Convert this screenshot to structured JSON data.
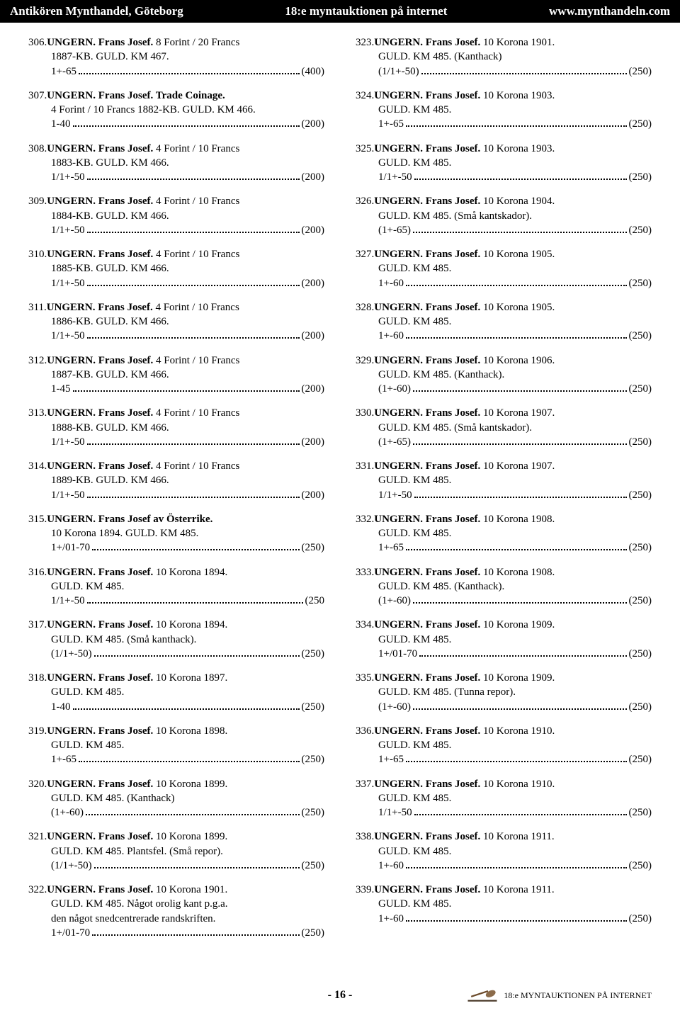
{
  "header": {
    "left": "Antikören Mynthandel, Göteborg",
    "center": "18:e myntauktionen på internet",
    "right": "www.mynthandeln.com"
  },
  "footer": {
    "page": "- 16 -",
    "right": "18:e MYNTAUKTIONEN PÅ INTERNET"
  },
  "lots_left": [
    {
      "num": "306.",
      "title": "UNGERN. Frans Josef.",
      "rest": " 8 Forint / 20 Francs",
      "body": [
        "1887-KB. GULD. KM 467."
      ],
      "lead": "1+-65",
      "price": "(400)"
    },
    {
      "num": "307.",
      "title": "UNGERN. Frans Josef. Trade Coinage.",
      "rest": "",
      "body": [
        "4 Forint / 10 Francs 1882-KB. GULD. KM 466."
      ],
      "lead": "1-40",
      "price": "(200)"
    },
    {
      "num": "308.",
      "title": "UNGERN. Frans Josef.",
      "rest": " 4 Forint / 10 Francs",
      "body": [
        "1883-KB. GULD. KM 466."
      ],
      "lead": "1/1+-50",
      "price": "(200)"
    },
    {
      "num": "309.",
      "title": "UNGERN. Frans Josef.",
      "rest": " 4 Forint / 10 Francs",
      "body": [
        "1884-KB. GULD. KM 466."
      ],
      "lead": "1/1+-50",
      "price": "(200)"
    },
    {
      "num": "310.",
      "title": "UNGERN. Frans Josef.",
      "rest": " 4 Forint / 10 Francs",
      "body": [
        "1885-KB. GULD. KM 466."
      ],
      "lead": "1/1+-50",
      "price": "(200)"
    },
    {
      "num": "311.",
      "title": "UNGERN. Frans Josef.",
      "rest": " 4 Forint / 10 Francs",
      "body": [
        "1886-KB. GULD. KM 466."
      ],
      "lead": "1/1+-50",
      "price": "(200)"
    },
    {
      "num": "312.",
      "title": "UNGERN. Frans Josef.",
      "rest": " 4 Forint / 10 Francs",
      "body": [
        "1887-KB. GULD. KM 466."
      ],
      "lead": "1-45",
      "price": "(200)"
    },
    {
      "num": "313.",
      "title": "UNGERN. Frans Josef.",
      "rest": " 4 Forint / 10 Francs",
      "body": [
        "1888-KB. GULD. KM 466."
      ],
      "lead": "1/1+-50",
      "price": "(200)"
    },
    {
      "num": "314.",
      "title": "UNGERN. Frans Josef.",
      "rest": " 4 Forint / 10 Francs",
      "body": [
        "1889-KB. GULD. KM 466."
      ],
      "lead": "1/1+-50",
      "price": "(200)"
    },
    {
      "num": "315.",
      "title": "UNGERN. Frans Josef av Österrike.",
      "rest": "",
      "body": [
        "10 Korona 1894. GULD. KM 485."
      ],
      "lead": "1+/01-70",
      "price": "(250)"
    },
    {
      "num": "316.",
      "title": "UNGERN. Frans Josef.",
      "rest": " 10 Korona 1894.",
      "body": [
        "GULD. KM 485."
      ],
      "lead": "1/1+-50",
      "price": "(250"
    },
    {
      "num": "317.",
      "title": "UNGERN. Frans Josef.",
      "rest": " 10 Korona 1894.",
      "body": [
        "GULD. KM 485. (Små kanthack)."
      ],
      "lead": "(1/1+-50)",
      "price": "(250)"
    },
    {
      "num": "318.",
      "title": "UNGERN. Frans Josef.",
      "rest": " 10 Korona 1897.",
      "body": [
        "GULD. KM 485."
      ],
      "lead": "1-40",
      "price": "(250)"
    },
    {
      "num": "319.",
      "title": "UNGERN. Frans Josef.",
      "rest": " 10 Korona 1898.",
      "body": [
        "GULD. KM 485."
      ],
      "lead": "1+-65",
      "price": "(250)"
    },
    {
      "num": "320.",
      "title": "UNGERN. Frans Josef.",
      "rest": " 10 Korona 1899.",
      "body": [
        "GULD. KM 485. (Kanthack)"
      ],
      "lead": "(1+-60)",
      "price": "(250)"
    },
    {
      "num": "321.",
      "title": "UNGERN. Frans Josef.",
      "rest": " 10 Korona 1899.",
      "body": [
        "GULD. KM 485. Plantsfel. (Små repor)."
      ],
      "lead": "(1/1+-50)",
      "price": "(250)"
    },
    {
      "num": "322.",
      "title": "UNGERN. Frans Josef.",
      "rest": " 10 Korona 1901.",
      "body": [
        "GULD. KM 485. Något orolig kant p.g.a.",
        "den något snedcentrerade randskriften."
      ],
      "lead": "1+/01-70",
      "price": "(250)"
    }
  ],
  "lots_right": [
    {
      "num": "323.",
      "title": "UNGERN. Frans Josef.",
      "rest": " 10 Korona 1901.",
      "body": [
        "GULD. KM 485. (Kanthack)"
      ],
      "lead": "(1/1+-50)",
      "price": "(250)"
    },
    {
      "num": "324.",
      "title": "UNGERN. Frans Josef.",
      "rest": " 10 Korona 1903.",
      "body": [
        "GULD. KM 485."
      ],
      "lead": "1+-65",
      "price": "(250)"
    },
    {
      "num": "325.",
      "title": "UNGERN. Frans Josef.",
      "rest": " 10 Korona 1903.",
      "body": [
        "GULD. KM 485."
      ],
      "lead": "1/1+-50",
      "price": "(250)"
    },
    {
      "num": "326.",
      "title": "UNGERN. Frans Josef.",
      "rest": " 10 Korona 1904.",
      "body": [
        "GULD. KM 485. (Små kantskador)."
      ],
      "lead": "(1+-65)",
      "price": "(250)"
    },
    {
      "num": "327.",
      "title": "UNGERN. Frans Josef.",
      "rest": " 10 Korona 1905.",
      "body": [
        "GULD. KM 485."
      ],
      "lead": "1+-60",
      "price": "(250)"
    },
    {
      "num": "328.",
      "title": "UNGERN. Frans Josef.",
      "rest": " 10 Korona 1905.",
      "body": [
        "GULD. KM 485."
      ],
      "lead": "1+-60",
      "price": "(250)"
    },
    {
      "num": "329.",
      "title": "UNGERN. Frans Josef.",
      "rest": " 10 Korona 1906.",
      "body": [
        "GULD. KM 485. (Kanthack)."
      ],
      "lead": "(1+-60)",
      "price": "(250)"
    },
    {
      "num": "330.",
      "title": "UNGERN. Frans Josef.",
      "rest": " 10 Korona 1907.",
      "body": [
        "GULD. KM 485. (Små kantskador)."
      ],
      "lead": "(1+-65)",
      "price": "(250)"
    },
    {
      "num": "331.",
      "title": "UNGERN. Frans Josef.",
      "rest": " 10 Korona 1907.",
      "body": [
        "GULD. KM 485."
      ],
      "lead": "1/1+-50",
      "price": "(250)"
    },
    {
      "num": "332.",
      "title": "UNGERN. Frans Josef.",
      "rest": " 10 Korona 1908.",
      "body": [
        "GULD. KM 485."
      ],
      "lead": "1+-65",
      "price": "(250)"
    },
    {
      "num": "333.",
      "title": "UNGERN. Frans Josef.",
      "rest": " 10 Korona 1908.",
      "body": [
        "GULD. KM 485. (Kanthack)."
      ],
      "lead": "(1+-60)",
      "price": "(250)"
    },
    {
      "num": "334.",
      "title": "UNGERN. Frans Josef.",
      "rest": " 10 Korona 1909.",
      "body": [
        "GULD. KM 485."
      ],
      "lead": "1+/01-70",
      "price": "(250)"
    },
    {
      "num": "335.",
      "title": "UNGERN. Frans Josef.",
      "rest": " 10 Korona 1909.",
      "body": [
        "GULD. KM 485. (Tunna repor)."
      ],
      "lead": "(1+-60)",
      "price": "(250)"
    },
    {
      "num": "336.",
      "title": "UNGERN. Frans Josef.",
      "rest": " 10 Korona 1910.",
      "body": [
        "GULD. KM 485."
      ],
      "lead": "1+-65",
      "price": "(250)"
    },
    {
      "num": "337.",
      "title": "UNGERN. Frans Josef.",
      "rest": " 10 Korona 1910.",
      "body": [
        "GULD. KM 485."
      ],
      "lead": "1/1+-50",
      "price": "(250)"
    },
    {
      "num": "338.",
      "title": "UNGERN. Frans Josef.",
      "rest": " 10 Korona 1911.",
      "body": [
        "GULD. KM 485."
      ],
      "lead": "1+-60",
      "price": "(250)"
    },
    {
      "num": "339.",
      "title": "UNGERN. Frans Josef.",
      "rest": " 10 Korona 1911.",
      "body": [
        "GULD. KM 485."
      ],
      "lead": "1+-60",
      "price": "(250)"
    }
  ]
}
